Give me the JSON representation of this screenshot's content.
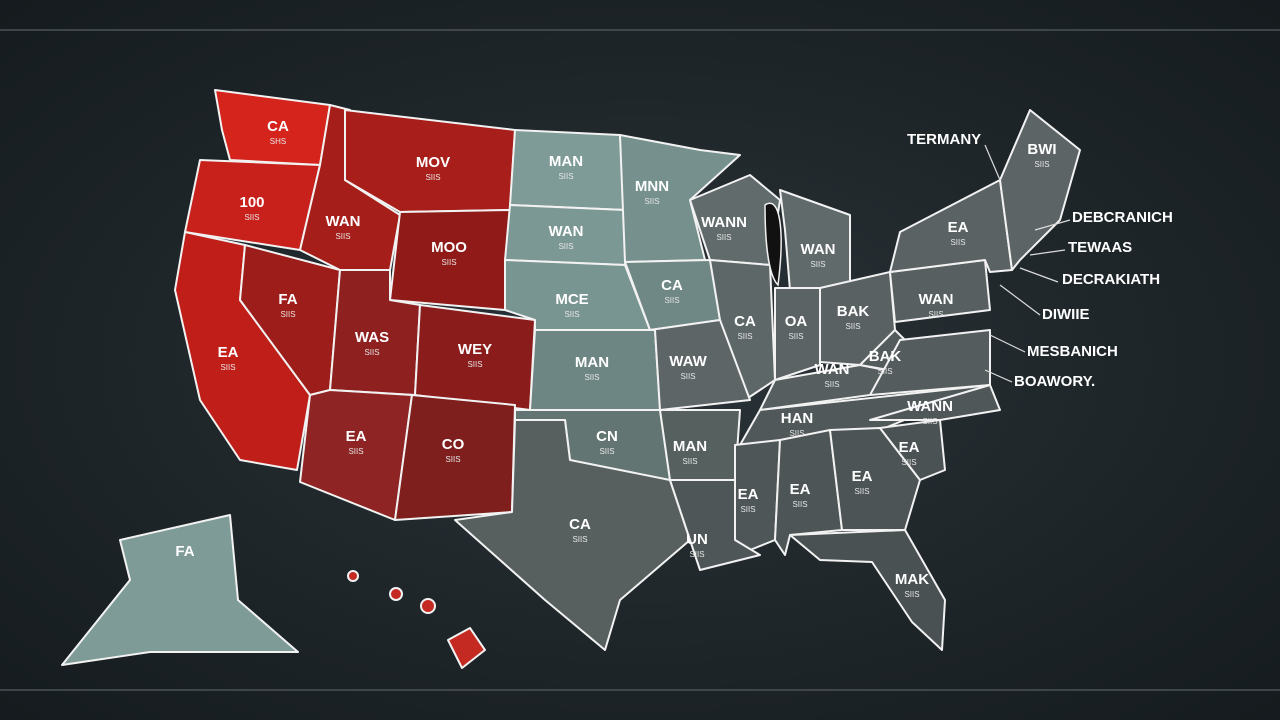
{
  "map": {
    "states": [
      {
        "label": "CA",
        "sublabel": "SHS"
      },
      {
        "label": "100",
        "sublabel": "SIIS"
      },
      {
        "label": "MOV",
        "sublabel": "SIIS"
      },
      {
        "label": "WAN",
        "sublabel": "SIIS"
      },
      {
        "label": "MOO",
        "sublabel": "SIIS"
      },
      {
        "label": "FA",
        "sublabel": "SIIS"
      },
      {
        "label": "EA",
        "sublabel": "SIIS"
      },
      {
        "label": "WAS",
        "sublabel": "SIIS"
      },
      {
        "label": "WEY",
        "sublabel": "SIIS"
      },
      {
        "label": "EA",
        "sublabel": "SIIS"
      },
      {
        "label": "CO",
        "sublabel": "SIIS"
      },
      {
        "label": "MAN",
        "sublabel": "SIIS"
      },
      {
        "label": "WAN",
        "sublabel": "SIIS"
      },
      {
        "label": "MCE",
        "sublabel": "SIIS"
      },
      {
        "label": "MAN",
        "sublabel": "SIIS"
      },
      {
        "label": "MNN",
        "sublabel": "SIIS"
      },
      {
        "label": "WANN",
        "sublabel": "SIIS"
      },
      {
        "label": "CA",
        "sublabel": "SIIS"
      },
      {
        "label": "WAN",
        "sublabel": "SIIS"
      },
      {
        "label": "CA",
        "sublabel": "SIIS"
      },
      {
        "label": "OA",
        "sublabel": "SIIS"
      },
      {
        "label": "BAK",
        "sublabel": "SIIS"
      },
      {
        "label": "WAW",
        "sublabel": "SIIS"
      },
      {
        "label": "WAN",
        "sublabel": "SIIS"
      },
      {
        "label": "BAK",
        "sublabel": "SIIS"
      },
      {
        "label": "WAN",
        "sublabel": "SIIS"
      },
      {
        "label": "EA",
        "sublabel": "SIIS"
      },
      {
        "label": "BWI",
        "sublabel": "SIIS"
      },
      {
        "label": "HAN",
        "sublabel": "SIIS"
      },
      {
        "label": "WANN",
        "sublabel": "SIIS"
      },
      {
        "label": "CN",
        "sublabel": "SIIS"
      },
      {
        "label": "MAN",
        "sublabel": "SIIS"
      },
      {
        "label": "EA",
        "sublabel": "SIIS"
      },
      {
        "label": "EA",
        "sublabel": "SIIS"
      },
      {
        "label": "EA",
        "sublabel": "SIIS"
      },
      {
        "label": "EA",
        "sublabel": "SIIS"
      },
      {
        "label": "CA",
        "sublabel": "SIIS"
      },
      {
        "label": "UN",
        "sublabel": "SIIS"
      },
      {
        "label": "MAK",
        "sublabel": "SIIS"
      },
      {
        "label": "FA",
        "sublabel": ""
      }
    ],
    "callouts": [
      "TERMANY",
      "DEBCRANICH",
      "TEWAAS",
      "DECRAKIATH",
      "DIWIIE",
      "MESBANICH",
      "BOAWORY."
    ]
  }
}
